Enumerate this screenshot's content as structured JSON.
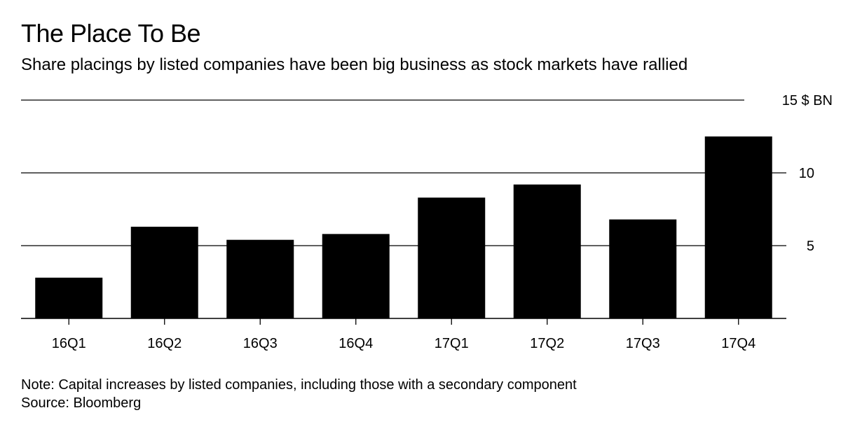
{
  "chart_data": {
    "type": "bar",
    "title": "The Place To Be",
    "subtitle": "Share placings by listed companies have been big business as stock markets have rallied",
    "categories": [
      "16Q1",
      "16Q2",
      "16Q3",
      "16Q4",
      "17Q1",
      "17Q2",
      "17Q3",
      "17Q4"
    ],
    "values": [
      2.8,
      6.3,
      5.4,
      5.8,
      8.3,
      9.2,
      6.8,
      12.5
    ],
    "xlabel": "",
    "ylabel": "",
    "ylim": [
      0,
      15
    ],
    "yticks": [
      {
        "value": 15,
        "label": "15 $ BN"
      },
      {
        "value": 10,
        "label": "10"
      },
      {
        "value": 5,
        "label": "5"
      }
    ],
    "grid": true,
    "bar_color": "#000000",
    "note": "Note: Capital increases by listed companies, including those with a secondary component",
    "source": "Source: Bloomberg"
  }
}
